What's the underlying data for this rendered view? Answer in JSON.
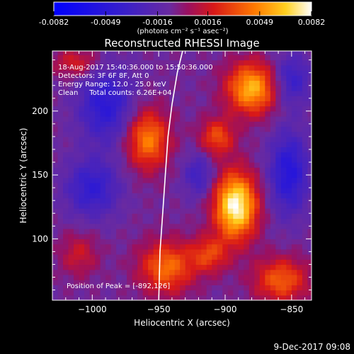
{
  "colorbar": {
    "tick_labels": [
      "-0.0082",
      "-0.0049",
      "-0.0016",
      "0.0016",
      "0.0049",
      "0.0082"
    ],
    "unit_label": "(photons cm⁻² s⁻¹ asec⁻²)",
    "range": [
      -0.0082,
      0.0082
    ]
  },
  "chart_data": {
    "type": "heatmap",
    "title": "Reconstructed RHESSI Image",
    "xlabel": "Heliocentric X (arcsec)",
    "ylabel": "Heliocentric Y (arcsec)",
    "xlim": [
      -1030,
      -835
    ],
    "ylim": [
      52,
      247
    ],
    "x_ticks": [
      -1000,
      -950,
      -900,
      -850
    ],
    "y_ticks": [
      100,
      150,
      200
    ],
    "x_tick_labels": [
      "−1000",
      "−950",
      "−900",
      "−850"
    ],
    "y_tick_labels": [
      "100",
      "150",
      "200"
    ],
    "annotations": [
      "18-Aug-2017 15:40:36.000 to 15:50:36.000",
      "Detectors: 3F 6F 8F, Att 0",
      "Energy Range: 12.0 - 25.0 keV",
      "Clean     Total counts: 6.26E+04"
    ],
    "peak_label": "Position of Peak = [-892,126]",
    "peak": [
      -892,
      126
    ],
    "sources": [
      {
        "x": -892,
        "y": 126,
        "amp": 1.0,
        "sx": 11,
        "sy": 18
      },
      {
        "x": -880,
        "y": 218,
        "amp": 0.75,
        "sx": 13,
        "sy": 14
      },
      {
        "x": -958,
        "y": 178,
        "amp": 0.6,
        "sx": 11,
        "sy": 16
      },
      {
        "x": -944,
        "y": 78,
        "amp": 0.55,
        "sx": 14,
        "sy": 14
      },
      {
        "x": -858,
        "y": 68,
        "amp": 0.5,
        "sx": 14,
        "sy": 12
      },
      {
        "x": -1012,
        "y": 238,
        "amp": 0.3,
        "sx": 12,
        "sy": 8
      },
      {
        "x": -1010,
        "y": 88,
        "amp": 0.25,
        "sx": 10,
        "sy": 12
      },
      {
        "x": -906,
        "y": 180,
        "amp": 0.45,
        "sx": 9,
        "sy": 10
      },
      {
        "x": -912,
        "y": 88,
        "amp": 0.4,
        "sx": 10,
        "sy": 10
      },
      {
        "x": -990,
        "y": 205,
        "amp": -0.45,
        "sx": 14,
        "sy": 20
      },
      {
        "x": -1000,
        "y": 140,
        "amp": -0.4,
        "sx": 14,
        "sy": 16
      },
      {
        "x": -852,
        "y": 152,
        "amp": -0.5,
        "sx": 10,
        "sy": 22
      },
      {
        "x": -920,
        "y": 150,
        "amp": -0.3,
        "sx": 8,
        "sy": 12
      },
      {
        "x": -850,
        "y": 225,
        "amp": -0.35,
        "sx": 10,
        "sy": 14
      }
    ],
    "limb_curve": [
      [
        -932,
        247
      ],
      [
        -936,
        230
      ],
      [
        -940,
        205
      ],
      [
        -943,
        180
      ],
      [
        -945,
        150
      ],
      [
        -947,
        120
      ],
      [
        -949,
        90
      ],
      [
        -950,
        52
      ]
    ]
  },
  "footer": {
    "date": "9-Dec-2017 09:08"
  }
}
